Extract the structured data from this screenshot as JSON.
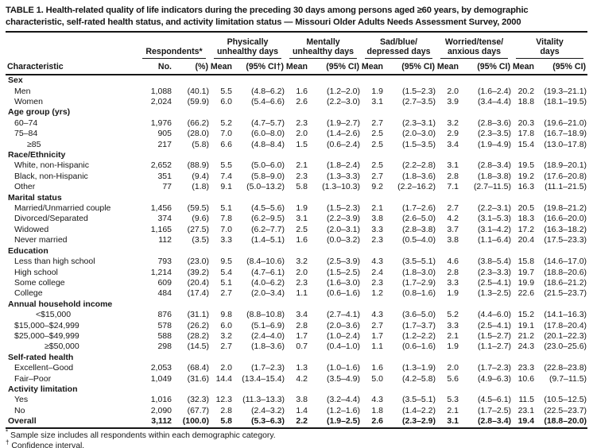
{
  "title": "TABLE 1. Health-related quality of life indicators during the preceding 30 days among persons aged ≥60 years, by demographic characteristic, self-rated health status, and activity limitation status — Missouri Older Adults Needs Assessment Survey, 2000",
  "header": {
    "characteristic_label": "Characteristic",
    "respondents": {
      "label": "Respondents*",
      "sub": [
        "No.",
        "(%)"
      ]
    },
    "groups": [
      {
        "line1": "Physically",
        "line2": "unhealthy days",
        "sub": [
          "Mean",
          "(95% CI†)"
        ]
      },
      {
        "line1": "Mentally",
        "line2": "unhealthy days",
        "sub": [
          "Mean",
          "(95% CI)"
        ]
      },
      {
        "line1": "Sad/blue/",
        "line2": "depressed days",
        "sub": [
          "Mean",
          "(95% CI)"
        ]
      },
      {
        "line1": "Worried/tense/",
        "line2": "anxious days",
        "sub": [
          "Mean",
          "(95% CI)"
        ]
      },
      {
        "line1": "Vitality",
        "line2": "days",
        "sub": [
          "Mean",
          "(95% CI)"
        ]
      }
    ]
  },
  "rows": [
    {
      "type": "section",
      "indent": 0,
      "label": "Sex"
    },
    {
      "type": "data",
      "indent": 1,
      "label": "Men",
      "values": [
        "1,088",
        "(40.1)",
        "5.5",
        "(4.8–6.2)",
        "1.6",
        "(1.2–2.0)",
        "1.9",
        "(1.5–2.3)",
        "2.0",
        "(1.6–2.4)",
        "20.2",
        "(19.3–21.1)"
      ]
    },
    {
      "type": "data",
      "indent": 1,
      "label": "Women",
      "values": [
        "2,024",
        "(59.9)",
        "6.0",
        "(5.4–6.6)",
        "2.6",
        "(2.2–3.0)",
        "3.1",
        "(2.7–3.5)",
        "3.9",
        "(3.4–4.4)",
        "18.8",
        "(18.1–19.5)"
      ]
    },
    {
      "type": "section",
      "indent": 0,
      "label": "Age group (yrs)"
    },
    {
      "type": "data",
      "indent": 1,
      "label": "60–74",
      "values": [
        "1,976",
        "(66.2)",
        "5.2",
        "(4.7–5.7)",
        "2.3",
        "(1.9–2.7)",
        "2.7",
        "(2.3–3.1)",
        "3.2",
        "(2.8–3.6)",
        "20.3",
        "(19.6–21.0)"
      ]
    },
    {
      "type": "data",
      "indent": 1,
      "label": "75–84",
      "values": [
        "905",
        "(28.0)",
        "7.0",
        "(6.0–8.0)",
        "2.0",
        "(1.4–2.6)",
        "2.5",
        "(2.0–3.0)",
        "2.9",
        "(2.3–3.5)",
        "17.8",
        "(16.7–18.9)"
      ]
    },
    {
      "type": "data",
      "indent": 2,
      "label": "≥85",
      "values": [
        "217",
        "(5.8)",
        "6.6",
        "(4.8–8.4)",
        "1.5",
        "(0.6–2.4)",
        "2.5",
        "(1.5–3.5)",
        "3.4",
        "(1.9–4.9)",
        "15.4",
        "(13.0–17.8)"
      ]
    },
    {
      "type": "section",
      "indent": 0,
      "label": "Race/Ethnicity"
    },
    {
      "type": "data",
      "indent": 1,
      "label": "White, non-Hispanic",
      "values": [
        "2,652",
        "(88.9)",
        "5.5",
        "(5.0–6.0)",
        "2.1",
        "(1.8–2.4)",
        "2.5",
        "(2.2–2.8)",
        "3.1",
        "(2.8–3.4)",
        "19.5",
        "(18.9–20.1)"
      ]
    },
    {
      "type": "data",
      "indent": 1,
      "label": "Black, non-Hispanic",
      "values": [
        "351",
        "(9.4)",
        "7.4",
        "(5.8–9.0)",
        "2.3",
        "(1.3–3.3)",
        "2.7",
        "(1.8–3.6)",
        "2.8",
        "(1.8–3.8)",
        "19.2",
        "(17.6–20.8)"
      ]
    },
    {
      "type": "data",
      "indent": 1,
      "label": "Other",
      "values": [
        "77",
        "(1.8)",
        "9.1",
        "(5.0–13.2)",
        "5.8",
        "(1.3–10.3)",
        "9.2",
        "(2.2–16.2)",
        "7.1",
        "(2.7–11.5)",
        "16.3",
        "(11.1–21.5)"
      ]
    },
    {
      "type": "section",
      "indent": 0,
      "label": "Marital status"
    },
    {
      "type": "data",
      "indent": 1,
      "label": "Married/Unmarried couple",
      "values": [
        "1,456",
        "(59.5)",
        "5.1",
        "(4.5–5.6)",
        "1.9",
        "(1.5–2.3)",
        "2.1",
        "(1.7–2.6)",
        "2.7",
        "(2.2–3.1)",
        "20.5",
        "(19.8–21.2)"
      ]
    },
    {
      "type": "data",
      "indent": 1,
      "label": "Divorced/Separated",
      "values": [
        "374",
        "(9.6)",
        "7.8",
        "(6.2–9.5)",
        "3.1",
        "(2.2–3.9)",
        "3.8",
        "(2.6–5.0)",
        "4.2",
        "(3.1–5.3)",
        "18.3",
        "(16.6–20.0)"
      ]
    },
    {
      "type": "data",
      "indent": 1,
      "label": "Widowed",
      "values": [
        "1,165",
        "(27.5)",
        "7.0",
        "(6.2–7.7)",
        "2.5",
        "(2.0–3.1)",
        "3.3",
        "(2.8–3.8)",
        "3.7",
        "(3.1–4.2)",
        "17.2",
        "(16.3–18.2)"
      ]
    },
    {
      "type": "data",
      "indent": 1,
      "label": "Never married",
      "values": [
        "112",
        "(3.5)",
        "3.3",
        "(1.4–5.1)",
        "1.6",
        "(0.0–3.2)",
        "2.3",
        "(0.5–4.0)",
        "3.8",
        "(1.1–6.4)",
        "20.4",
        "(17.5–23.3)"
      ]
    },
    {
      "type": "section",
      "indent": 0,
      "label": "Education"
    },
    {
      "type": "data",
      "indent": 1,
      "label": "Less than high school",
      "values": [
        "793",
        "(23.0)",
        "9.5",
        "(8.4–10.6)",
        "3.2",
        "(2.5–3.9)",
        "4.3",
        "(3.5–5.1)",
        "4.6",
        "(3.8–5.4)",
        "15.8",
        "(14.6–17.0)"
      ]
    },
    {
      "type": "data",
      "indent": 1,
      "label": "High school",
      "values": [
        "1,214",
        "(39.2)",
        "5.4",
        "(4.7–6.1)",
        "2.0",
        "(1.5–2.5)",
        "2.4",
        "(1.8–3.0)",
        "2.8",
        "(2.3–3.3)",
        "19.7",
        "(18.8–20.6)"
      ]
    },
    {
      "type": "data",
      "indent": 1,
      "label": "Some college",
      "values": [
        "609",
        "(20.4)",
        "5.1",
        "(4.0–6.2)",
        "2.3",
        "(1.6–3.0)",
        "2.3",
        "(1.7–2.9)",
        "3.3",
        "(2.5–4.1)",
        "19.9",
        "(18.6–21.2)"
      ]
    },
    {
      "type": "data",
      "indent": 1,
      "label": "College",
      "values": [
        "484",
        "(17.4)",
        "2.7",
        "(2.0–3.4)",
        "1.1",
        "(0.6–1.6)",
        "1.2",
        "(0.8–1.6)",
        "1.9",
        "(1.3–2.5)",
        "22.6",
        "(21.5–23.7)"
      ]
    },
    {
      "type": "section",
      "indent": 0,
      "label": "Annual household income"
    },
    {
      "type": "data",
      "indent": 3,
      "label": "<$15,000",
      "values": [
        "876",
        "(31.1)",
        "9.8",
        "(8.8–10.8)",
        "3.4",
        "(2.7–4.1)",
        "4.3",
        "(3.6–5.0)",
        "5.2",
        "(4.4–6.0)",
        "15.2",
        "(14.1–16.3)"
      ]
    },
    {
      "type": "data",
      "indent": 1,
      "label": "$15,000–$24,999",
      "values": [
        "578",
        "(26.2)",
        "6.0",
        "(5.1–6.9)",
        "2.8",
        "(2.0–3.6)",
        "2.7",
        "(1.7–3.7)",
        "3.3",
        "(2.5–4.1)",
        "19.1",
        "(17.8–20.4)"
      ]
    },
    {
      "type": "data",
      "indent": 1,
      "label": "$25,000–$49,999",
      "values": [
        "588",
        "(28.2)",
        "3.2",
        "(2.4–4.0)",
        "1.7",
        "(1.0–2.4)",
        "1.7",
        "(1.2–2.2)",
        "2.1",
        "(1.5–2.7)",
        "21.2",
        "(20.1–22.3)"
      ]
    },
    {
      "type": "data",
      "indent": 4,
      "label": "≥$50,000",
      "values": [
        "298",
        "(14.5)",
        "2.7",
        "(1.8–3.6)",
        "0.7",
        "(0.4–1.0)",
        "1.1",
        "(0.6–1.6)",
        "1.9",
        "(1.1–2.7)",
        "24.3",
        "(23.0–25.6)"
      ]
    },
    {
      "type": "section",
      "indent": 0,
      "label": "Self-rated health"
    },
    {
      "type": "data",
      "indent": 1,
      "label": "Excellent–Good",
      "values": [
        "2,053",
        "(68.4)",
        "2.0",
        "(1.7–2.3)",
        "1.3",
        "(1.0–1.6)",
        "1.6",
        "(1.3–1.9)",
        "2.0",
        "(1.7–2.3)",
        "23.3",
        "(22.8–23.8)"
      ]
    },
    {
      "type": "data",
      "indent": 1,
      "label": "Fair–Poor",
      "values": [
        "1,049",
        "(31.6)",
        "14.4",
        "(13.4–15.4)",
        "4.2",
        "(3.5–4.9)",
        "5.0",
        "(4.2–5.8)",
        "5.6",
        "(4.9–6.3)",
        "10.6",
        "(9.7–11.5)"
      ]
    },
    {
      "type": "section",
      "indent": 0,
      "label": "Activity limitation"
    },
    {
      "type": "data",
      "indent": 1,
      "label": "Yes",
      "values": [
        "1,016",
        "(32.3)",
        "12.3",
        "(11.3–13.3)",
        "3.8",
        "(3.2–4.4)",
        "4.3",
        "(3.5–5.1)",
        "5.3",
        "(4.5–6.1)",
        "11.5",
        "(10.5–12.5)"
      ]
    },
    {
      "type": "data",
      "indent": 1,
      "label": "No",
      "values": [
        "2,090",
        "(67.7)",
        "2.8",
        "(2.4–3.2)",
        "1.4",
        "(1.2–1.6)",
        "1.8",
        "(1.4–2.2)",
        "2.1",
        "(1.7–2.5)",
        "23.1",
        "(22.5–23.7)"
      ]
    },
    {
      "type": "overall",
      "indent": 0,
      "label": "Overall",
      "values": [
        "3,112",
        "(100.0)",
        "5.8",
        "(5.3–6.3)",
        "2.2",
        "(1.9–2.5)",
        "2.6",
        "(2.3–2.9)",
        "3.1",
        "(2.8–3.4)",
        "19.4",
        "(18.8–20.0)"
      ]
    }
  ],
  "footnotes": [
    {
      "marker": "*",
      "text": "Sample size includes all respondents within each demographic category."
    },
    {
      "marker": "†",
      "text": "Confidence interval."
    }
  ]
}
